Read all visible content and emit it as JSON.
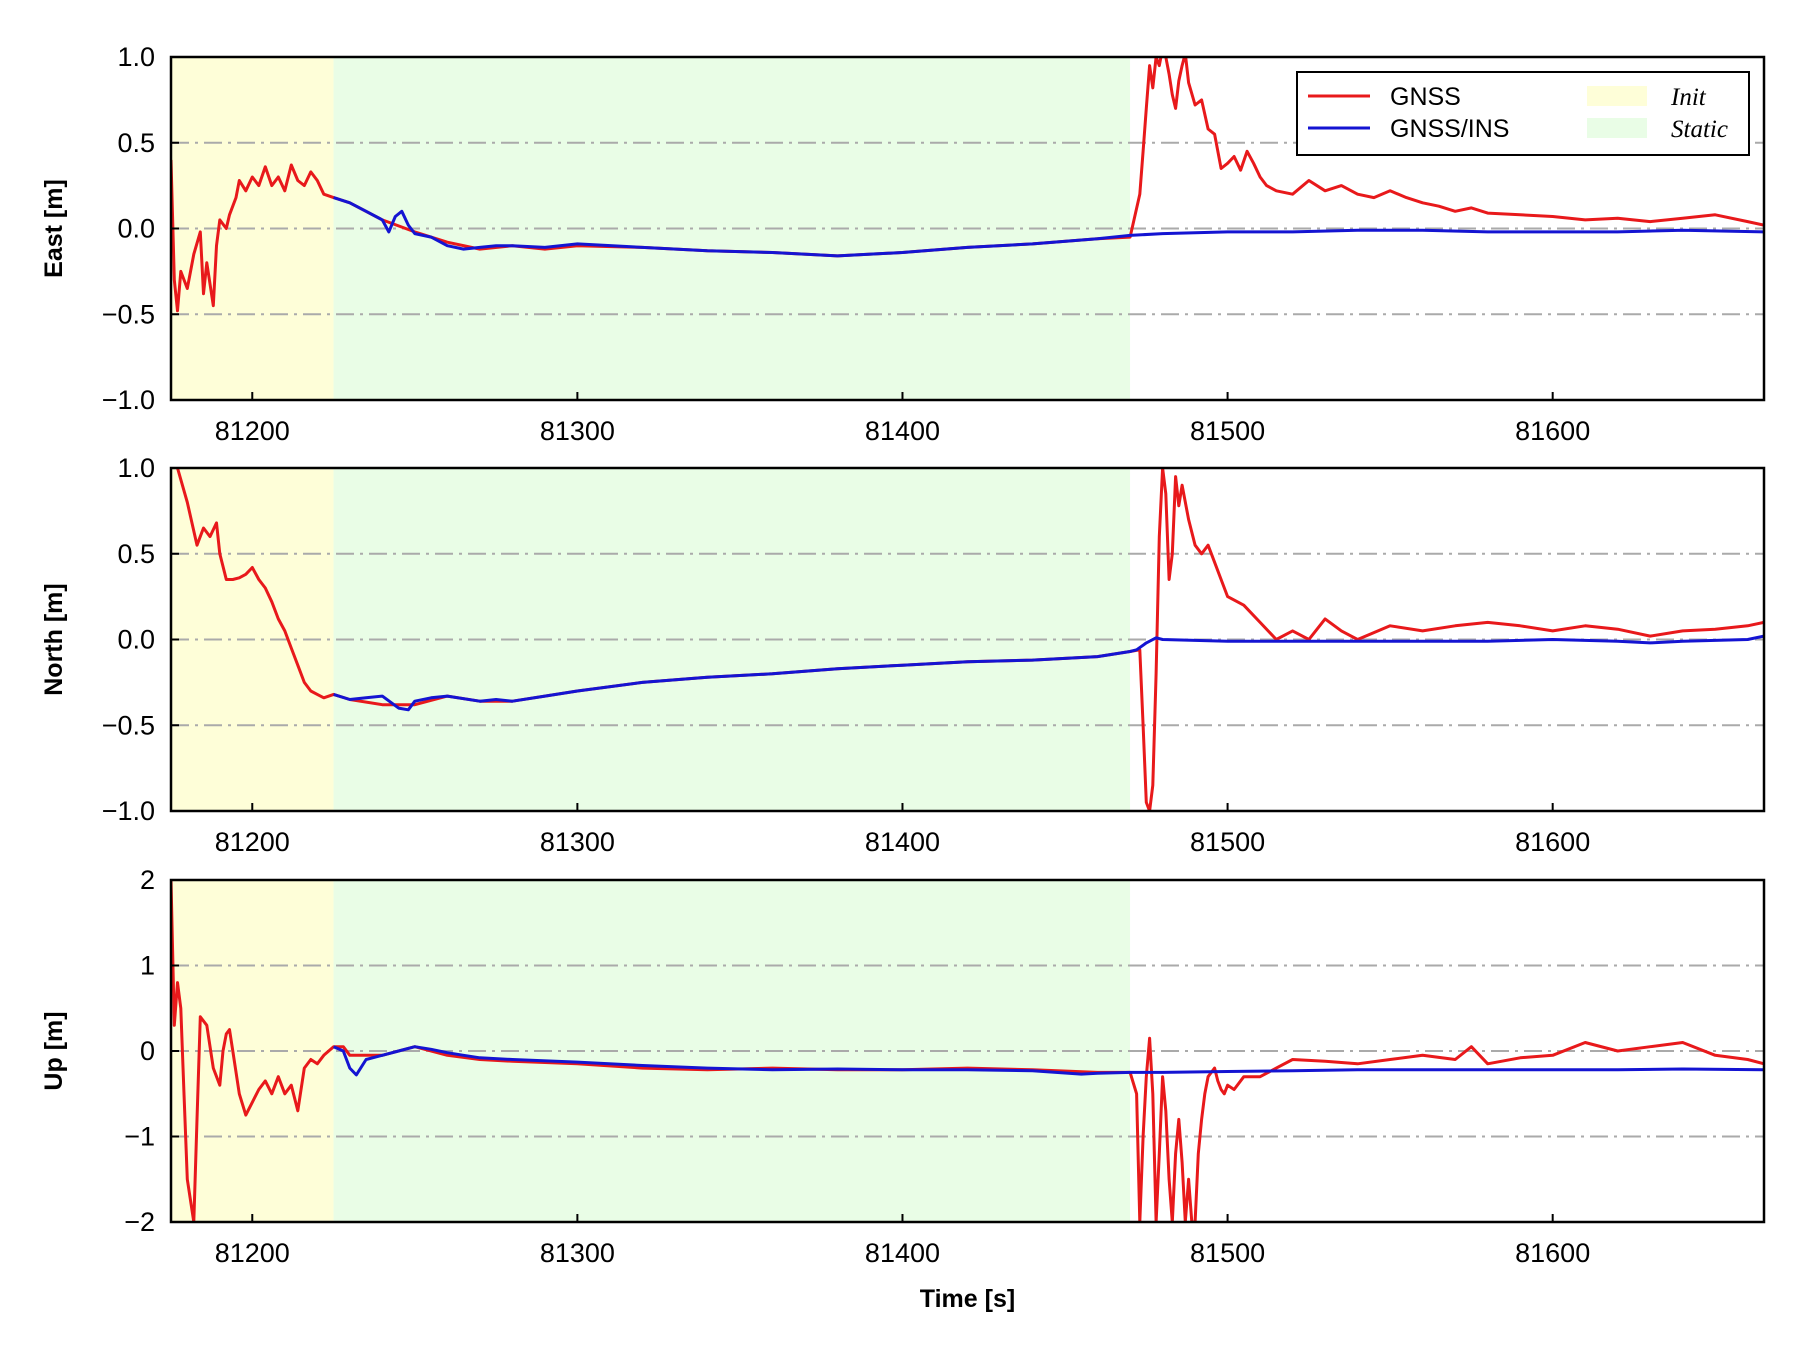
{
  "colors": {
    "gnss": "#e8191b",
    "gnss_ins": "#1414d2",
    "init_band": "#fefed8",
    "static_band": "#e9fde6",
    "grid": "#aaaaaa"
  },
  "legend": {
    "placement": "top-right of first panel",
    "entries": [
      {
        "label": "GNSS",
        "kind": "line",
        "color_key": "gnss"
      },
      {
        "label": "GNSS/INS",
        "kind": "line",
        "color_key": "gnss_ins"
      },
      {
        "label": "Init",
        "kind": "band",
        "color_key": "init_band"
      },
      {
        "label": "Static",
        "kind": "band",
        "color_key": "static_band"
      }
    ]
  },
  "chart_data": [
    {
      "type": "line",
      "ylabel": "East [m]",
      "xlim": [
        81175,
        81665
      ],
      "ylim": [
        -1.0,
        1.0
      ],
      "yticks": [
        -1.0,
        -0.5,
        0.0,
        0.5,
        1.0
      ],
      "ytick_labels": [
        "−1.0",
        "−0.5",
        "0.0",
        "0.5",
        "1.0"
      ],
      "xticks": [
        81200,
        81300,
        81400,
        81500,
        81600
      ],
      "xtick_labels": [
        "81200",
        "81300",
        "81400",
        "81500",
        "81600"
      ],
      "grid_y": [
        -0.5,
        0.0,
        0.5
      ],
      "bands": [
        {
          "label": "Init",
          "x0": 81175,
          "x1": 81225
        },
        {
          "label": "Static",
          "x0": 81225,
          "x1": 81470
        }
      ],
      "series": [
        {
          "name": "GNSS",
          "color_key": "gnss",
          "x": [
            81175,
            81176,
            81177,
            81178,
            81180,
            81182,
            81184,
            81185,
            81186,
            81188,
            81189,
            81190,
            81192,
            81193,
            81195,
            81196,
            81198,
            81200,
            81202,
            81204,
            81206,
            81208,
            81210,
            81212,
            81214,
            81216,
            81218,
            81220,
            81222,
            81225,
            81230,
            81240,
            81250,
            81260,
            81270,
            81280,
            81290,
            81300,
            81320,
            81340,
            81360,
            81380,
            81400,
            81420,
            81440,
            81460,
            81470,
            81473,
            81474,
            81475,
            81476,
            81477,
            81478,
            81479,
            81480,
            81481,
            81482,
            81483,
            81484,
            81485,
            81486,
            81487,
            81488,
            81490,
            81492,
            81494,
            81496,
            81498,
            81500,
            81502,
            81504,
            81506,
            81508,
            81510,
            81512,
            81515,
            81520,
            81525,
            81530,
            81535,
            81540,
            81545,
            81550,
            81555,
            81560,
            81565,
            81570,
            81575,
            81580,
            81590,
            81600,
            81610,
            81620,
            81630,
            81640,
            81650,
            81660,
            81665
          ],
          "y": [
            0.4,
            -0.3,
            -0.48,
            -0.25,
            -0.35,
            -0.15,
            -0.02,
            -0.38,
            -0.2,
            -0.45,
            -0.1,
            0.05,
            0.0,
            0.08,
            0.18,
            0.28,
            0.22,
            0.3,
            0.25,
            0.36,
            0.25,
            0.3,
            0.22,
            0.37,
            0.28,
            0.25,
            0.33,
            0.28,
            0.2,
            0.18,
            0.15,
            0.05,
            -0.02,
            -0.08,
            -0.12,
            -0.1,
            -0.12,
            -0.1,
            -0.11,
            -0.13,
            -0.14,
            -0.16,
            -0.14,
            -0.11,
            -0.09,
            -0.06,
            -0.05,
            0.2,
            0.45,
            0.7,
            0.95,
            0.82,
            1.0,
            0.95,
            1.05,
            1.0,
            0.9,
            0.78,
            0.7,
            0.86,
            0.95,
            1.02,
            0.85,
            0.72,
            0.75,
            0.58,
            0.55,
            0.35,
            0.38,
            0.42,
            0.34,
            0.45,
            0.38,
            0.3,
            0.25,
            0.22,
            0.2,
            0.28,
            0.22,
            0.25,
            0.2,
            0.18,
            0.22,
            0.18,
            0.15,
            0.13,
            0.1,
            0.12,
            0.09,
            0.08,
            0.07,
            0.05,
            0.06,
            0.04,
            0.06,
            0.08,
            0.04,
            0.02
          ]
        },
        {
          "name": "GNSS/INS",
          "color_key": "gnss_ins",
          "x": [
            81225,
            81230,
            81235,
            81240,
            81242,
            81244,
            81246,
            81248,
            81250,
            81255,
            81260,
            81265,
            81270,
            81275,
            81280,
            81290,
            81300,
            81320,
            81340,
            81360,
            81380,
            81400,
            81420,
            81440,
            81460,
            81470,
            81480,
            81500,
            81520,
            81540,
            81560,
            81580,
            81600,
            81620,
            81640,
            81665
          ],
          "y": [
            0.18,
            0.15,
            0.1,
            0.05,
            -0.02,
            0.07,
            0.1,
            0.02,
            -0.03,
            -0.05,
            -0.1,
            -0.12,
            -0.11,
            -0.1,
            -0.1,
            -0.11,
            -0.09,
            -0.11,
            -0.13,
            -0.14,
            -0.16,
            -0.14,
            -0.11,
            -0.09,
            -0.06,
            -0.04,
            -0.03,
            -0.02,
            -0.02,
            -0.01,
            -0.01,
            -0.02,
            -0.02,
            -0.02,
            -0.01,
            -0.02
          ]
        }
      ]
    },
    {
      "type": "line",
      "ylabel": "North [m]",
      "xlim": [
        81175,
        81665
      ],
      "ylim": [
        -1.0,
        1.0
      ],
      "yticks": [
        -1.0,
        -0.5,
        0.0,
        0.5,
        1.0
      ],
      "ytick_labels": [
        "−1.0",
        "−0.5",
        "0.0",
        "0.5",
        "1.0"
      ],
      "xticks": [
        81200,
        81300,
        81400,
        81500,
        81600
      ],
      "xtick_labels": [
        "81200",
        "81300",
        "81400",
        "81500",
        "81600"
      ],
      "grid_y": [
        -0.5,
        0.0,
        0.5
      ],
      "bands": [
        {
          "label": "Init",
          "x0": 81175,
          "x1": 81225
        },
        {
          "label": "Static",
          "x0": 81225,
          "x1": 81470
        }
      ],
      "series": [
        {
          "name": "GNSS",
          "color_key": "gnss",
          "x": [
            81175,
            81177,
            81180,
            81183,
            81185,
            81187,
            81189,
            81190,
            81192,
            81194,
            81196,
            81198,
            81200,
            81202,
            81204,
            81206,
            81208,
            81210,
            81212,
            81214,
            81216,
            81218,
            81220,
            81222,
            81225,
            81230,
            81240,
            81250,
            81260,
            81270,
            81280,
            81290,
            81300,
            81320,
            81340,
            81360,
            81380,
            81400,
            81420,
            81440,
            81460,
            81470,
            81473,
            81474,
            81475,
            81476,
            81477,
            81478,
            81479,
            81480,
            81481,
            81482,
            81483,
            81484,
            81485,
            81486,
            81488,
            81490,
            81492,
            81494,
            81496,
            81498,
            81500,
            81505,
            81510,
            81515,
            81520,
            81525,
            81530,
            81535,
            81540,
            81550,
            81560,
            81570,
            81580,
            81590,
            81600,
            81610,
            81620,
            81630,
            81640,
            81650,
            81660,
            81665
          ],
          "y": [
            1.1,
            1.0,
            0.8,
            0.55,
            0.65,
            0.6,
            0.68,
            0.5,
            0.35,
            0.35,
            0.36,
            0.38,
            0.42,
            0.35,
            0.3,
            0.22,
            0.12,
            0.05,
            -0.05,
            -0.15,
            -0.25,
            -0.3,
            -0.32,
            -0.34,
            -0.32,
            -0.35,
            -0.38,
            -0.38,
            -0.33,
            -0.36,
            -0.36,
            -0.33,
            -0.3,
            -0.25,
            -0.22,
            -0.2,
            -0.17,
            -0.15,
            -0.13,
            -0.12,
            -0.1,
            -0.07,
            -0.06,
            -0.5,
            -0.95,
            -1.0,
            -0.85,
            -0.2,
            0.6,
            1.0,
            0.85,
            0.35,
            0.5,
            0.95,
            0.78,
            0.9,
            0.7,
            0.55,
            0.5,
            0.55,
            0.45,
            0.35,
            0.25,
            0.2,
            0.1,
            0.0,
            0.05,
            0.0,
            0.12,
            0.05,
            0.0,
            0.08,
            0.05,
            0.08,
            0.1,
            0.08,
            0.05,
            0.08,
            0.06,
            0.02,
            0.05,
            0.06,
            0.08,
            0.1
          ]
        },
        {
          "name": "GNSS/INS",
          "color_key": "gnss_ins",
          "x": [
            81225,
            81230,
            81235,
            81240,
            81245,
            81248,
            81250,
            81255,
            81260,
            81270,
            81275,
            81280,
            81290,
            81300,
            81320,
            81340,
            81360,
            81380,
            81400,
            81420,
            81440,
            81460,
            81470,
            81472,
            81475,
            81478,
            81480,
            81500,
            81520,
            81540,
            81560,
            81580,
            81600,
            81620,
            81630,
            81640,
            81660,
            81665
          ],
          "y": [
            -0.32,
            -0.35,
            -0.34,
            -0.33,
            -0.4,
            -0.41,
            -0.36,
            -0.34,
            -0.33,
            -0.36,
            -0.35,
            -0.36,
            -0.33,
            -0.3,
            -0.25,
            -0.22,
            -0.2,
            -0.17,
            -0.15,
            -0.13,
            -0.12,
            -0.1,
            -0.07,
            -0.06,
            -0.02,
            0.01,
            0.0,
            -0.01,
            -0.01,
            -0.01,
            -0.01,
            -0.01,
            0.0,
            -0.01,
            -0.02,
            -0.01,
            0.0,
            0.02
          ]
        }
      ]
    },
    {
      "type": "line",
      "ylabel": "Up [m]",
      "xlabel": "Time [s]",
      "xlim": [
        81175,
        81665
      ],
      "ylim": [
        -2,
        2
      ],
      "yticks": [
        -2,
        -1,
        0,
        1,
        2
      ],
      "ytick_labels": [
        "−2",
        "−1",
        "0",
        "1",
        "2"
      ],
      "xticks": [
        81200,
        81300,
        81400,
        81500,
        81600
      ],
      "xtick_labels": [
        "81200",
        "81300",
        "81400",
        "81500",
        "81600"
      ],
      "grid_y": [
        -1,
        0,
        1
      ],
      "bands": [
        {
          "label": "Init",
          "x0": 81175,
          "x1": 81225
        },
        {
          "label": "Static",
          "x0": 81225,
          "x1": 81470
        }
      ],
      "series": [
        {
          "name": "GNSS",
          "color_key": "gnss",
          "x": [
            81175,
            81176,
            81177,
            81178,
            81179,
            81180,
            81182,
            81183,
            81184,
            81186,
            81188,
            81190,
            81191,
            81192,
            81193,
            81194,
            81196,
            81198,
            81200,
            81202,
            81204,
            81206,
            81208,
            81210,
            81212,
            81214,
            81216,
            81218,
            81220,
            81222,
            81225,
            81228,
            81230,
            81240,
            81250,
            81260,
            81270,
            81280,
            81300,
            81320,
            81340,
            81360,
            81380,
            81400,
            81420,
            81440,
            81460,
            81470,
            81472,
            81473,
            81474,
            81475,
            81476,
            81477,
            81478,
            81479,
            81480,
            81481,
            81482,
            81483,
            81484,
            81485,
            81486,
            81487,
            81488,
            81489,
            81490,
            81491,
            81492,
            81493,
            81494,
            81495,
            81496,
            81497,
            81498,
            81499,
            81500,
            81502,
            81505,
            81510,
            81515,
            81520,
            81530,
            81540,
            81550,
            81560,
            81570,
            81575,
            81580,
            81590,
            81600,
            81610,
            81620,
            81630,
            81640,
            81650,
            81660,
            81665
          ],
          "y": [
            2.0,
            0.3,
            0.8,
            0.5,
            -0.5,
            -1.5,
            -2.0,
            -0.8,
            0.4,
            0.3,
            -0.2,
            -0.4,
            0.0,
            0.2,
            0.25,
            0.0,
            -0.5,
            -0.75,
            -0.6,
            -0.45,
            -0.35,
            -0.5,
            -0.3,
            -0.5,
            -0.4,
            -0.7,
            -0.2,
            -0.1,
            -0.15,
            -0.05,
            0.05,
            0.05,
            -0.05,
            -0.05,
            0.05,
            -0.05,
            -0.1,
            -0.12,
            -0.15,
            -0.2,
            -0.22,
            -0.2,
            -0.22,
            -0.22,
            -0.2,
            -0.22,
            -0.25,
            -0.25,
            -0.5,
            -2.0,
            -1.0,
            -0.3,
            0.15,
            -0.5,
            -2.0,
            -1.2,
            -0.3,
            -0.7,
            -1.5,
            -2.0,
            -1.2,
            -0.8,
            -1.3,
            -2.0,
            -1.5,
            -2.0,
            -2.0,
            -1.2,
            -0.8,
            -0.5,
            -0.3,
            -0.25,
            -0.2,
            -0.35,
            -0.45,
            -0.5,
            -0.4,
            -0.45,
            -0.3,
            -0.3,
            -0.2,
            -0.1,
            -0.12,
            -0.15,
            -0.1,
            -0.05,
            -0.1,
            0.05,
            -0.15,
            -0.08,
            -0.05,
            0.1,
            0.0,
            0.05,
            0.1,
            -0.05,
            -0.1,
            -0.15
          ]
        },
        {
          "name": "GNSS/INS",
          "color_key": "gnss_ins",
          "x": [
            81225,
            81228,
            81230,
            81232,
            81235,
            81240,
            81245,
            81250,
            81255,
            81260,
            81265,
            81270,
            81280,
            81300,
            81320,
            81340,
            81360,
            81380,
            81400,
            81420,
            81440,
            81455,
            81460,
            81470,
            81480,
            81500,
            81520,
            81540,
            81560,
            81580,
            81600,
            81620,
            81640,
            81665
          ],
          "y": [
            0.05,
            0.0,
            -0.2,
            -0.28,
            -0.1,
            -0.05,
            0.0,
            0.05,
            0.02,
            -0.02,
            -0.05,
            -0.08,
            -0.1,
            -0.13,
            -0.17,
            -0.2,
            -0.22,
            -0.21,
            -0.22,
            -0.22,
            -0.23,
            -0.27,
            -0.26,
            -0.25,
            -0.25,
            -0.24,
            -0.23,
            -0.22,
            -0.22,
            -0.22,
            -0.22,
            -0.22,
            -0.21,
            -0.22
          ]
        }
      ]
    }
  ]
}
